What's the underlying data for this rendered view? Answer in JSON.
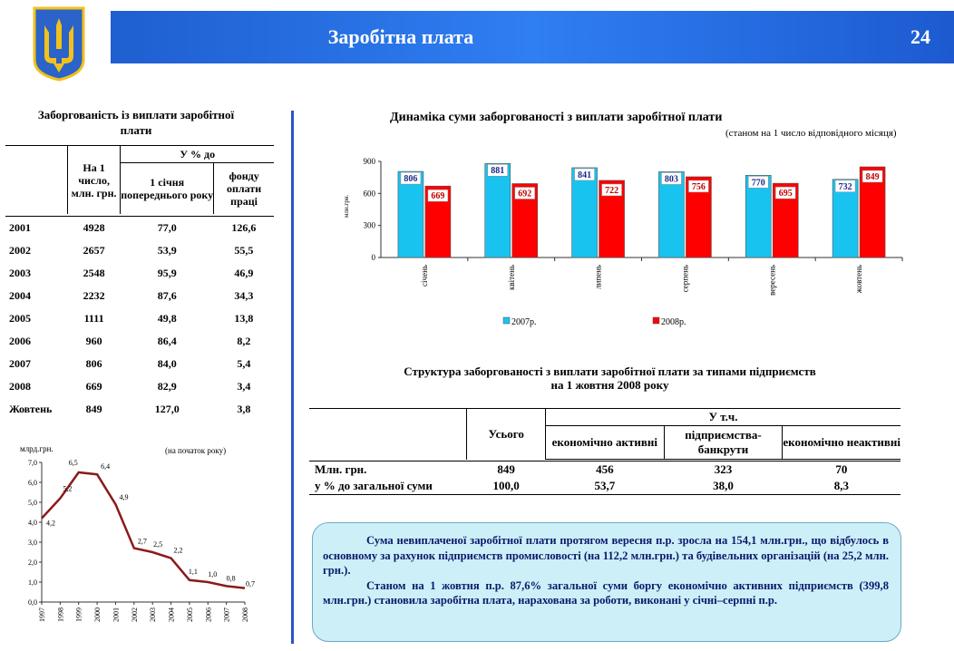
{
  "header": {
    "title": "Заробітна плата",
    "page_number": "24"
  },
  "left_table": {
    "title": "Заборгованість із виплати заробітної плати",
    "col_amount": "На 1 число, млн. грн.",
    "col_percent": "У % до",
    "col_prev": "1 січня попереднього року",
    "col_fund": "фонду оплати праці",
    "rows": [
      {
        "year": "2001",
        "amount": "4928",
        "prev": "77,0",
        "fund": "126,6"
      },
      {
        "year": "2002",
        "amount": "2657",
        "prev": "53,9",
        "fund": "55,5"
      },
      {
        "year": "2003",
        "amount": "2548",
        "prev": "95,9",
        "fund": "46,9"
      },
      {
        "year": "2004",
        "amount": "2232",
        "prev": "87,6",
        "fund": "34,3"
      },
      {
        "year": "2005",
        "amount": "1111",
        "prev": "49,8",
        "fund": "13,8"
      },
      {
        "year": "2006",
        "amount": "960",
        "prev": "86,4",
        "fund": "8,2"
      },
      {
        "year": "2007",
        "amount": "806",
        "prev": "84,0",
        "fund": "5,4"
      },
      {
        "year": "2008",
        "amount": "669",
        "prev": "82,9",
        "fund": "3,4"
      },
      {
        "year": "Жовтень",
        "amount": "849",
        "prev": "127,0",
        "fund": "3,8"
      }
    ]
  },
  "right_table": {
    "title_line1": "Структура заборгованості з виплати заробітної плати за типами підприємств",
    "title_line2": "на 1 жовтня 2008 року",
    "col_total": "Усього",
    "col_group": "У т.ч.",
    "col_active": "економічно активні",
    "col_bankrupt": "підприємства-банкрути",
    "col_inactive": "економічно неактивні",
    "rows": [
      {
        "label": "Млн. грн.",
        "total": "849",
        "active": "456",
        "bankrupt": "323",
        "inactive": "70"
      },
      {
        "label": "у % до загальної суми",
        "total": "100,0",
        "active": "53,7",
        "bankrupt": "38,0",
        "inactive": "8,3"
      }
    ]
  },
  "note": {
    "p1": "Сума невиплаченої заробітної плати протягом вересня п.р. зросла на 154,1 млн.грн., що відбулось в основному за рахунок підприємств промисловості (на 112,2 млн.грн.) та будівельних організацій (на 25,2 млн. грн.).",
    "p2": "Станом на 1 жовтня п.р. 87,6% загальної суми боргу економічно активних підприємств (399,8 млн.грн.) становила заробітна плата, нарахована за роботи, виконані у січні–серпні п.р."
  },
  "colors": {
    "header": "#2a6fe6",
    "bar2007": "#19c3f0",
    "bar2008": "#ff0000",
    "line": "#8b1a1a",
    "note_bg": "#cdeff8"
  },
  "chart_data": [
    {
      "type": "bar",
      "title": "Динаміка суми заборгованості з виплати заробітної плати",
      "subtitle": "(станом на 1 число відповідного місяця)",
      "ylabel": "млн.грн.",
      "ylim": [
        0,
        900
      ],
      "yticks": [
        "0",
        "300",
        "600",
        "900"
      ],
      "categories": [
        "січень",
        "квітень",
        "липень",
        "серпень",
        "вересень",
        "жовтень"
      ],
      "series": [
        {
          "name": "2007р.",
          "values": [
            806,
            881,
            841,
            803,
            770,
            732
          ]
        },
        {
          "name": "2008р.",
          "values": [
            669,
            692,
            722,
            756,
            695,
            849
          ]
        }
      ],
      "legend": "bottom"
    },
    {
      "type": "line",
      "ylabel": "млрд.грн.",
      "subtitle": "(на початок року)",
      "ylim": [
        0,
        7
      ],
      "yticks": [
        "0,0",
        "1,0",
        "2,0",
        "3,0",
        "4,0",
        "5,0",
        "6,0",
        "7,0"
      ],
      "x": [
        "1997",
        "1998",
        "1999",
        "2000",
        "2001",
        "2002",
        "2003",
        "2004",
        "2005",
        "2006",
        "2007",
        "2008"
      ],
      "values": [
        4.2,
        5.2,
        6.5,
        6.4,
        4.9,
        2.7,
        2.5,
        2.2,
        1.1,
        1.0,
        0.8,
        0.7
      ],
      "labels": [
        "4,2",
        "5,2",
        "6,5",
        "6,4",
        "4,9",
        "2,7",
        "2,5",
        "2,2",
        "1,1",
        "1,0",
        "0,8",
        "0,7"
      ]
    }
  ]
}
